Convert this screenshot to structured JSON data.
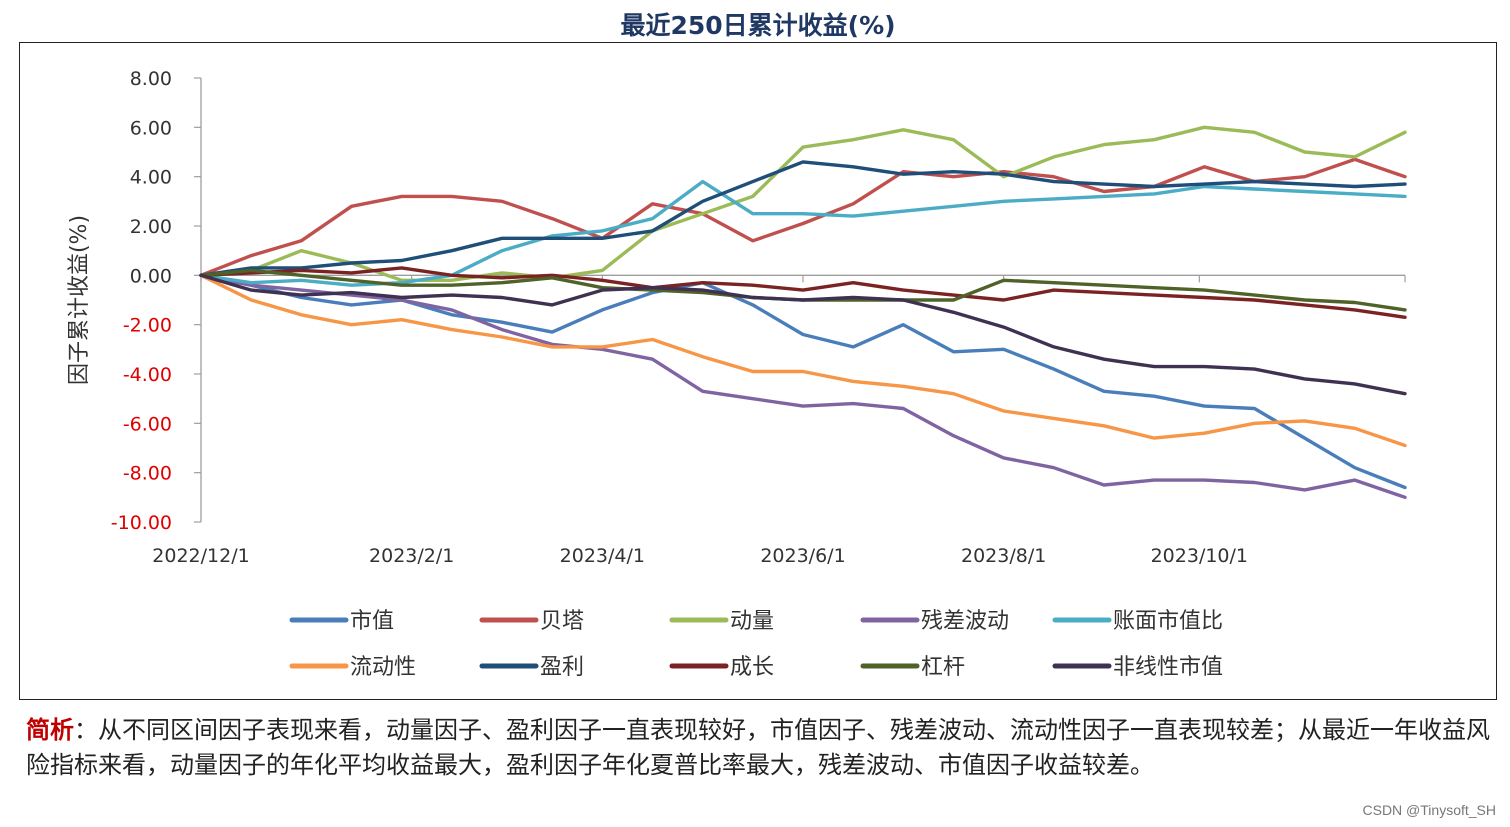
{
  "watermark": "CSDN @Tinysoft_SH",
  "note": {
    "lead": "简析",
    "text": "：从不同区间因子表现来看，动量因子、盈利因子一直表现较好，市值因子、残差波动、流动性因子一直表现较差；从最近一年收益风险指标来看，动量因子的年化平均收益最大，盈利因子年化夏普比率最大，残差波动、市值因子收益较差。"
  },
  "colors": {
    "axis": "#9e9e9e",
    "positive_tick": "#333333",
    "negative_tick": "#e00000"
  },
  "chart_data": {
    "type": "line",
    "title": "最近250日累计收益(%)",
    "xlabel": "",
    "ylabel": "因子累计收益(%)",
    "ylim": [
      -10,
      8
    ],
    "yticks": [
      "8.00",
      "6.00",
      "4.00",
      "2.00",
      "0.00",
      "-2.00",
      "-4.00",
      "-6.00",
      "-8.00",
      "-10.00"
    ],
    "xticks": [
      {
        "label": "2022/12/1",
        "x": 0
      },
      {
        "label": "2023/2/1",
        "x": 42
      },
      {
        "label": "2023/4/1",
        "x": 80
      },
      {
        "label": "2023/6/1",
        "x": 120
      },
      {
        "label": "2023/8/1",
        "x": 160
      },
      {
        "label": "2023/10/1",
        "x": 199
      }
    ],
    "x_max": 240,
    "x": [
      0,
      10,
      20,
      30,
      40,
      50,
      60,
      70,
      80,
      90,
      100,
      110,
      120,
      130,
      140,
      150,
      160,
      170,
      180,
      190,
      200,
      210,
      220,
      230,
      240
    ],
    "legend_position": "bottom",
    "series": [
      {
        "name": "市值",
        "color": "#4a7ebb",
        "values": [
          0.0,
          -0.4,
          -0.9,
          -1.2,
          -1.0,
          -1.6,
          -1.9,
          -2.3,
          -1.4,
          -0.7,
          -0.3,
          -1.2,
          -2.4,
          -2.9,
          -2.0,
          -3.1,
          -3.0,
          -3.8,
          -4.7,
          -4.9,
          -5.3,
          -5.4,
          -6.6,
          -7.8,
          -8.6
        ]
      },
      {
        "name": "贝塔",
        "color": "#c0504d",
        "values": [
          0.0,
          0.8,
          1.4,
          2.8,
          3.2,
          3.2,
          3.0,
          2.3,
          1.5,
          2.9,
          2.5,
          1.4,
          2.1,
          2.9,
          4.2,
          4.0,
          4.2,
          4.0,
          3.4,
          3.6,
          4.4,
          3.8,
          4.0,
          4.7,
          4.0
        ]
      },
      {
        "name": "动量",
        "color": "#9bbb59",
        "values": [
          0.0,
          0.2,
          1.0,
          0.5,
          -0.2,
          -0.2,
          0.1,
          -0.1,
          0.2,
          1.8,
          2.5,
          3.2,
          5.2,
          5.5,
          5.9,
          5.5,
          4.0,
          4.8,
          5.3,
          5.5,
          6.0,
          5.8,
          5.0,
          4.8,
          5.8
        ]
      },
      {
        "name": "残差波动",
        "color": "#8064a2",
        "values": [
          0.0,
          -0.4,
          -0.6,
          -0.8,
          -1.0,
          -1.4,
          -2.2,
          -2.8,
          -3.0,
          -3.4,
          -4.7,
          -5.0,
          -5.3,
          -5.2,
          -5.4,
          -6.5,
          -7.4,
          -7.8,
          -8.5,
          -8.3,
          -8.3,
          -8.4,
          -8.7,
          -8.3,
          -9.0
        ]
      },
      {
        "name": "账面市值比",
        "color": "#4bacc6",
        "values": [
          0.0,
          -0.3,
          -0.2,
          -0.4,
          -0.3,
          0.0,
          1.0,
          1.6,
          1.8,
          2.3,
          3.8,
          2.5,
          2.5,
          2.4,
          2.6,
          2.8,
          3.0,
          3.1,
          3.2,
          3.3,
          3.6,
          3.5,
          3.4,
          3.3,
          3.2
        ]
      },
      {
        "name": "流动性",
        "color": "#f79646",
        "values": [
          0.0,
          -1.0,
          -1.6,
          -2.0,
          -1.8,
          -2.2,
          -2.5,
          -2.9,
          -2.9,
          -2.6,
          -3.3,
          -3.9,
          -3.9,
          -4.3,
          -4.5,
          -4.8,
          -5.5,
          -5.8,
          -6.1,
          -6.6,
          -6.4,
          -6.0,
          -5.9,
          -6.2,
          -6.9
        ]
      },
      {
        "name": "盈利",
        "color": "#1f4e79",
        "values": [
          0.0,
          0.3,
          0.3,
          0.5,
          0.6,
          1.0,
          1.5,
          1.5,
          1.5,
          1.8,
          3.0,
          3.8,
          4.6,
          4.4,
          4.1,
          4.2,
          4.1,
          3.8,
          3.7,
          3.6,
          3.7,
          3.8,
          3.7,
          3.6,
          3.7
        ]
      },
      {
        "name": "成长",
        "color": "#7b2323",
        "values": [
          0.0,
          0.1,
          0.2,
          0.1,
          0.3,
          0.0,
          -0.1,
          0.0,
          -0.2,
          -0.5,
          -0.3,
          -0.4,
          -0.6,
          -0.3,
          -0.6,
          -0.8,
          -1.0,
          -0.6,
          -0.7,
          -0.8,
          -0.9,
          -1.0,
          -1.2,
          -1.4,
          -1.7
        ]
      },
      {
        "name": "杠杆",
        "color": "#4f6228",
        "values": [
          0.0,
          0.2,
          0.0,
          -0.2,
          -0.4,
          -0.4,
          -0.3,
          -0.1,
          -0.5,
          -0.6,
          -0.7,
          -0.9,
          -1.0,
          -1.0,
          -1.0,
          -1.0,
          -0.2,
          -0.3,
          -0.4,
          -0.5,
          -0.6,
          -0.8,
          -1.0,
          -1.1,
          -1.4
        ]
      },
      {
        "name": "非线性市值",
        "color": "#3f3151",
        "values": [
          0.0,
          -0.6,
          -0.8,
          -0.7,
          -0.9,
          -0.8,
          -0.9,
          -1.2,
          -0.6,
          -0.5,
          -0.6,
          -0.9,
          -1.0,
          -0.9,
          -1.0,
          -1.5,
          -2.1,
          -2.9,
          -3.4,
          -3.7,
          -3.7,
          -3.8,
          -4.2,
          -4.4,
          -4.8
        ]
      }
    ]
  }
}
